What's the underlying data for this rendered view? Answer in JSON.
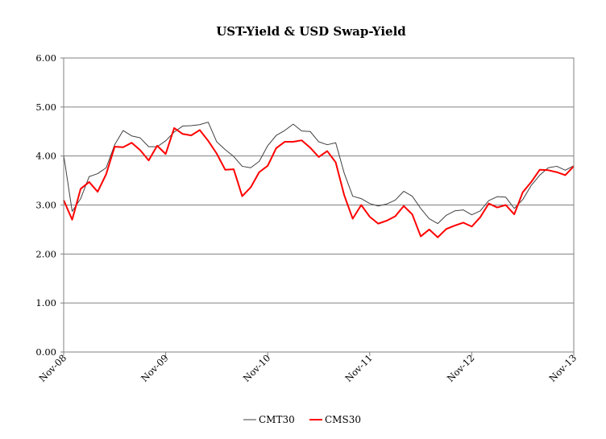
{
  "chart_data": {
    "type": "line",
    "title": "UST-Yield & USD Swap-Yield",
    "xlabel": "",
    "ylabel": "",
    "ylim": [
      0,
      6
    ],
    "yticks": [
      "0.00",
      "1.00",
      "2.00",
      "3.00",
      "4.00",
      "5.00",
      "6.00"
    ],
    "xticks": [
      "Nov-08",
      "Nov-09",
      "Nov-10",
      "Nov-11",
      "Nov-12",
      "Nov-13"
    ],
    "grid": "horizontal",
    "legend_position": "bottom",
    "x": [
      "Nov-08",
      "Dec-08",
      "Jan-09",
      "Feb-09",
      "Mar-09",
      "Apr-09",
      "May-09",
      "Jun-09",
      "Jul-09",
      "Aug-09",
      "Sep-09",
      "Oct-09",
      "Nov-09",
      "Dec-09",
      "Jan-10",
      "Feb-10",
      "Mar-10",
      "Apr-10",
      "May-10",
      "Jun-10",
      "Jul-10",
      "Aug-10",
      "Sep-10",
      "Oct-10",
      "Nov-10",
      "Dec-10",
      "Jan-11",
      "Feb-11",
      "Mar-11",
      "Apr-11",
      "May-11",
      "Jun-11",
      "Jul-11",
      "Aug-11",
      "Sep-11",
      "Oct-11",
      "Nov-11",
      "Dec-11",
      "Jan-12",
      "Feb-12",
      "Mar-12",
      "Apr-12",
      "May-12",
      "Jun-12",
      "Jul-12",
      "Aug-12",
      "Sep-12",
      "Oct-12",
      "Nov-12",
      "Dec-12",
      "Jan-13",
      "Feb-13",
      "Mar-13",
      "Apr-13",
      "May-13",
      "Jun-13",
      "Jul-13",
      "Aug-13",
      "Sep-13",
      "Oct-13",
      "Nov-13"
    ],
    "series": [
      {
        "name": "CMT30",
        "color": "#404040",
        "values": [
          4.02,
          2.87,
          3.13,
          3.58,
          3.64,
          3.76,
          4.23,
          4.52,
          4.41,
          4.37,
          4.19,
          4.19,
          4.31,
          4.49,
          4.61,
          4.62,
          4.64,
          4.69,
          4.29,
          4.13,
          3.99,
          3.79,
          3.76,
          3.89,
          4.21,
          4.42,
          4.52,
          4.65,
          4.51,
          4.5,
          4.29,
          4.23,
          4.27,
          3.65,
          3.18,
          3.13,
          3.03,
          2.98,
          3.02,
          3.1,
          3.28,
          3.18,
          2.93,
          2.72,
          2.62,
          2.79,
          2.88,
          2.9,
          2.8,
          2.88,
          3.09,
          3.17,
          3.16,
          2.93,
          3.11,
          3.4,
          3.61,
          3.76,
          3.79,
          3.71,
          3.8
        ]
      },
      {
        "name": "CMS30",
        "color": "#ff0000",
        "values": [
          3.1,
          2.7,
          3.33,
          3.47,
          3.27,
          3.63,
          4.19,
          4.18,
          4.27,
          4.12,
          3.91,
          4.21,
          4.04,
          4.57,
          4.45,
          4.42,
          4.53,
          4.31,
          4.05,
          3.72,
          3.73,
          3.18,
          3.36,
          3.67,
          3.8,
          4.16,
          4.29,
          4.29,
          4.32,
          4.17,
          3.98,
          4.1,
          3.87,
          3.2,
          2.72,
          3.0,
          2.76,
          2.62,
          2.68,
          2.77,
          2.98,
          2.81,
          2.36,
          2.5,
          2.34,
          2.51,
          2.58,
          2.64,
          2.56,
          2.75,
          3.03,
          2.95,
          3.0,
          2.81,
          3.26,
          3.47,
          3.72,
          3.71,
          3.67,
          3.61,
          3.79
        ]
      }
    ]
  }
}
